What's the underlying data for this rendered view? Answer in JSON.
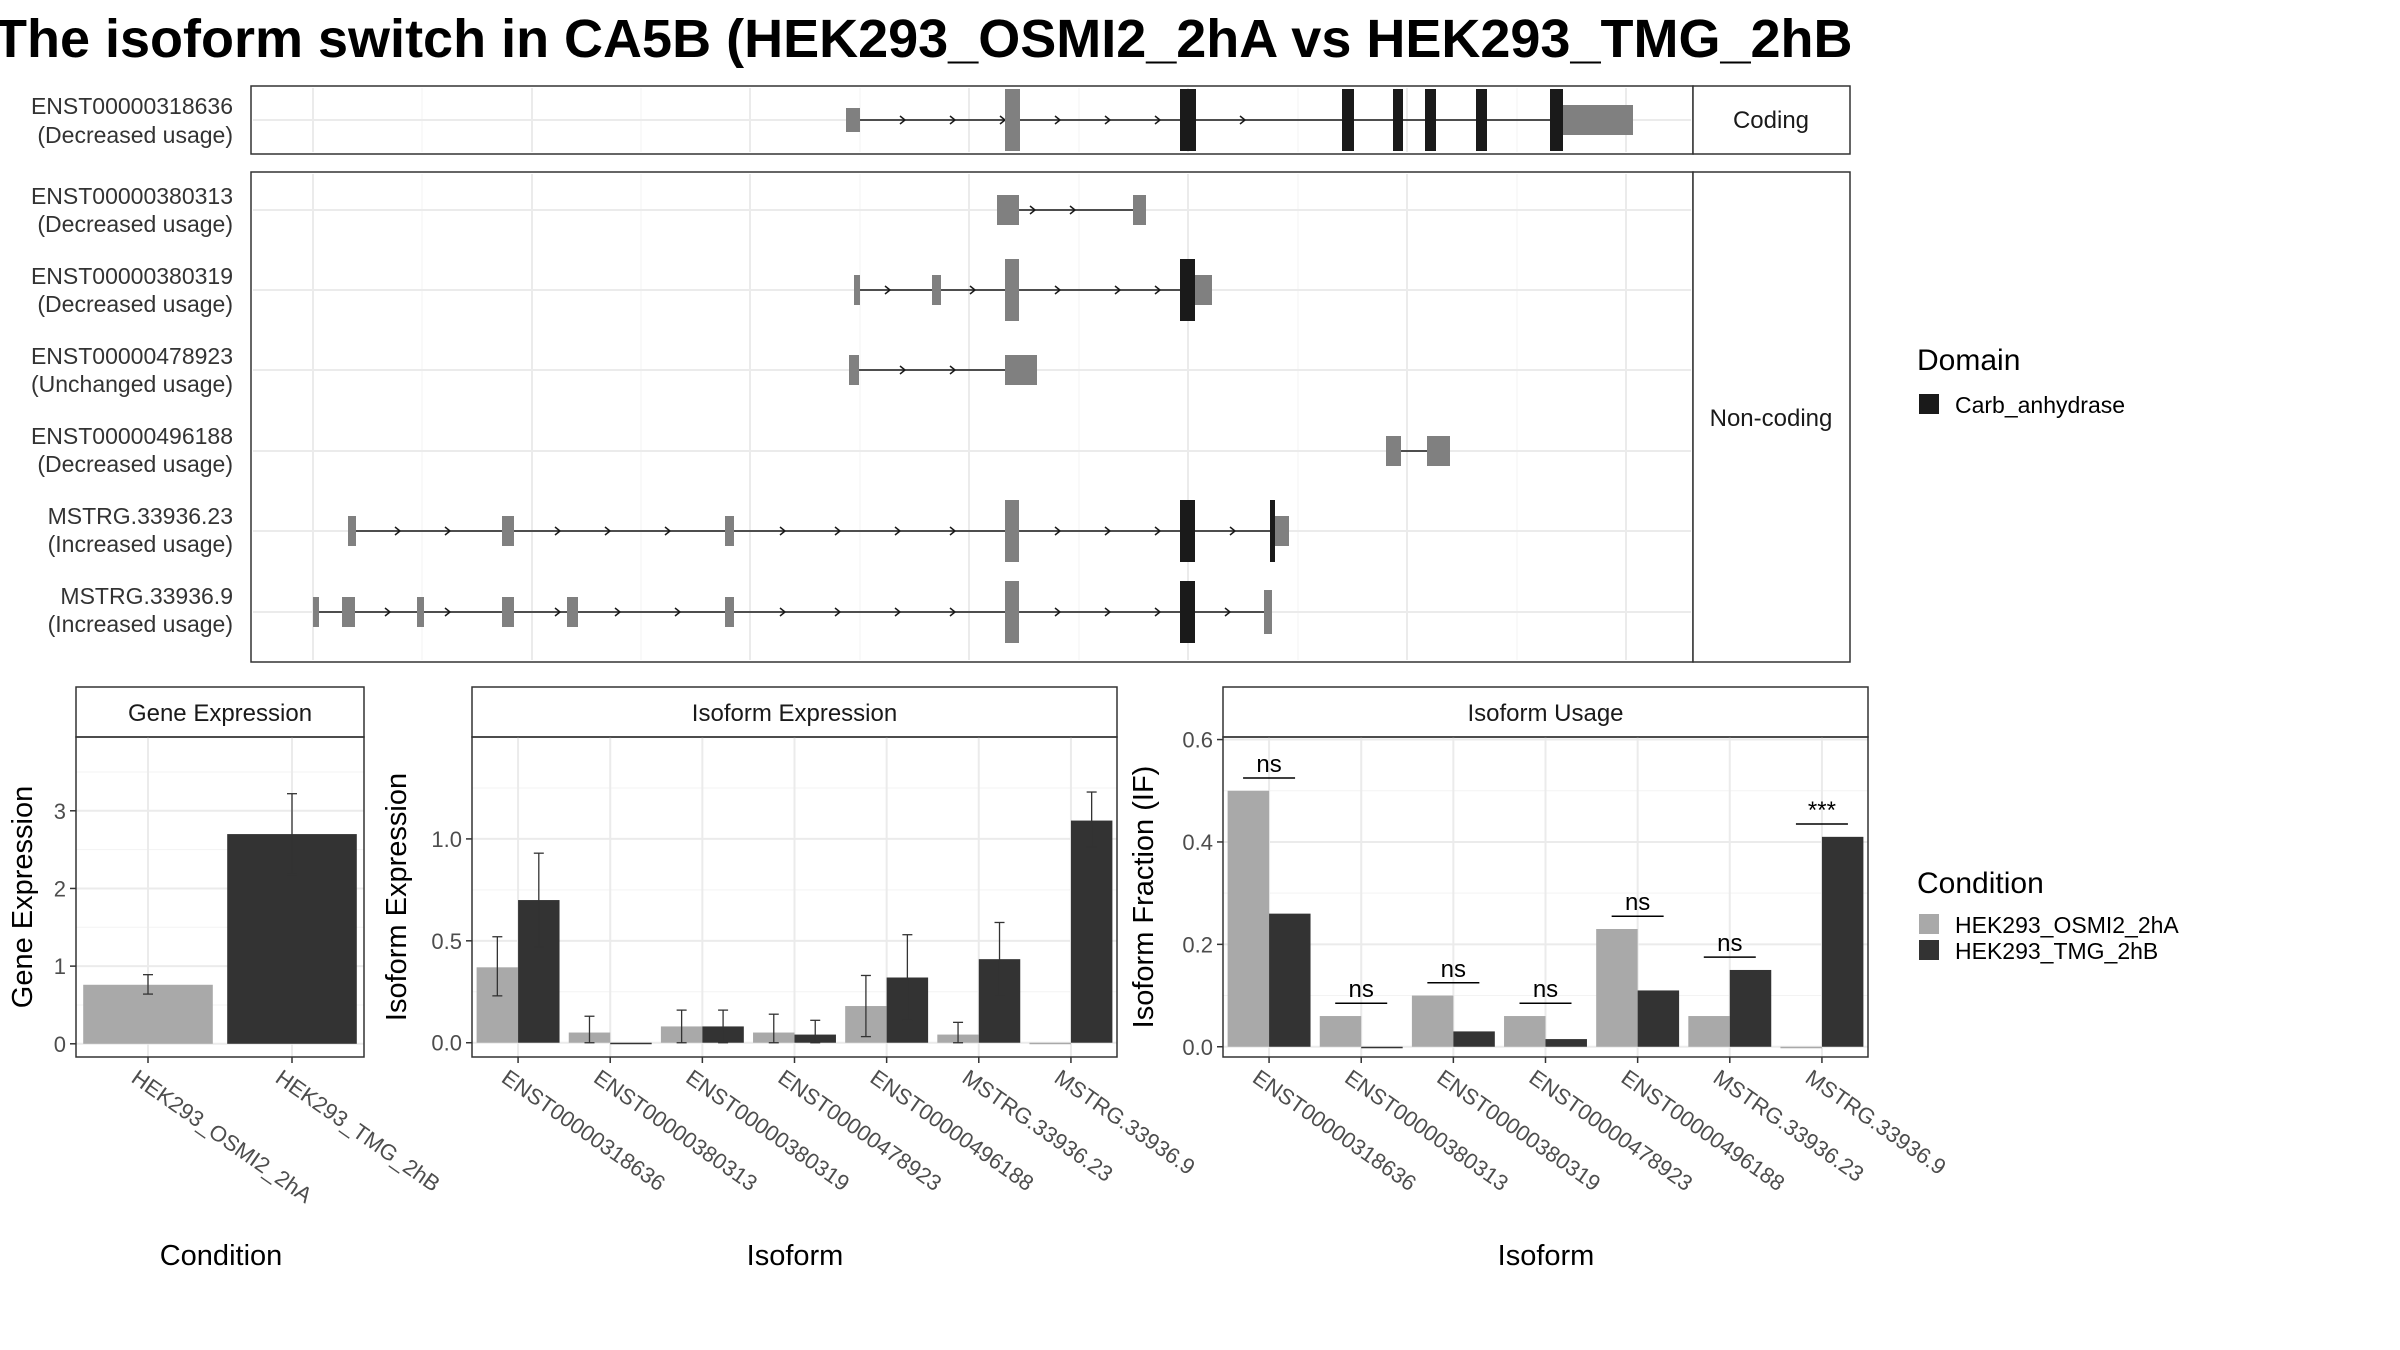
{
  "title": "The isoform switch in CA5B (HEK293_OSMI2_2hA vs HEK293_TMG_2hB",
  "colors": {
    "cond_a": "#a9a9a9",
    "cond_b": "#333333",
    "domain": "#1a1a1a",
    "exon": "#808080",
    "grid": "#ebebeb",
    "panel_border": "#333333"
  },
  "structure": {
    "coding_label": "Coding",
    "noncoding_label": "Non-coding",
    "transcripts": [
      {
        "id": "ENST00000318636",
        "usage": "(Decreased usage)",
        "group": "coding"
      },
      {
        "id": "ENST00000380313",
        "usage": "(Decreased usage)",
        "group": "noncoding"
      },
      {
        "id": "ENST00000380319",
        "usage": "(Decreased usage)",
        "group": "noncoding"
      },
      {
        "id": "ENST00000478923",
        "usage": "(Unchanged usage)",
        "group": "noncoding"
      },
      {
        "id": "ENST00000496188",
        "usage": "(Decreased usage)",
        "group": "noncoding"
      },
      {
        "id": "MSTRG.33936.23",
        "usage": "(Increased usage)",
        "group": "noncoding"
      },
      {
        "id": "MSTRG.33936.9",
        "usage": "(Increased usage)",
        "group": "noncoding"
      }
    ]
  },
  "legend": {
    "domain_title": "Domain",
    "domain_items": [
      "Carb_anhydrase"
    ],
    "condition_title": "Condition",
    "condition_items": [
      "HEK293_OSMI2_2hA",
      "HEK293_TMG_2hB"
    ]
  },
  "chart_data": [
    {
      "type": "bar",
      "panel": "Gene Expression",
      "categories": [
        "HEK293_OSMI2_2hA",
        "HEK293_TMG_2hB"
      ],
      "values": [
        0.76,
        2.7
      ],
      "error": [
        [
          0.64,
          0.89
        ],
        [
          2.18,
          3.22
        ]
      ],
      "xlabel": "Condition",
      "ylabel": "Gene Expression",
      "ylim": [
        -0.17,
        3.95
      ],
      "yticks": [
        0,
        1,
        2,
        3
      ]
    },
    {
      "type": "bar",
      "panel": "Isoform Expression",
      "categories": [
        "ENST00000318636",
        "ENST00000380313",
        "ENST00000380319",
        "ENST00000478923",
        "ENST00000496188",
        "MSTRG.33936.23",
        "MSTRG.33936.9"
      ],
      "series": [
        {
          "name": "HEK293_OSMI2_2hA",
          "values": [
            0.37,
            0.05,
            0.08,
            0.05,
            0.18,
            0.04,
            0.0
          ],
          "error": [
            [
              0.23,
              0.52
            ],
            [
              0.0,
              0.13
            ],
            [
              0.0,
              0.16
            ],
            [
              0.0,
              0.14
            ],
            [
              0.03,
              0.33
            ],
            [
              0.0,
              0.1
            ],
            [
              0.0,
              0.0
            ]
          ]
        },
        {
          "name": "HEK293_TMG_2hB",
          "values": [
            0.7,
            0.0,
            0.08,
            0.04,
            0.32,
            0.41,
            1.09
          ],
          "error": [
            [
              0.47,
              0.93
            ],
            [
              0.0,
              0.0
            ],
            [
              0.0,
              0.16
            ],
            [
              0.0,
              0.11
            ],
            [
              0.11,
              0.53
            ],
            [
              0.23,
              0.59
            ],
            [
              0.96,
              1.23
            ]
          ]
        }
      ],
      "xlabel": "Isoform",
      "ylabel": "Isoform Expression",
      "ylim": [
        -0.07,
        1.5
      ],
      "yticks": [
        0.0,
        0.5,
        1.0
      ]
    },
    {
      "type": "bar",
      "panel": "Isoform Usage",
      "categories": [
        "ENST00000318636",
        "ENST00000380313",
        "ENST00000380319",
        "ENST00000478923",
        "ENST00000496188",
        "MSTRG.33936.23",
        "MSTRG.33936.9"
      ],
      "series": [
        {
          "name": "HEK293_OSMI2_2hA",
          "values": [
            0.5,
            0.06,
            0.1,
            0.06,
            0.23,
            0.06,
            0.0
          ]
        },
        {
          "name": "HEK293_TMG_2hB",
          "values": [
            0.26,
            0.0,
            0.03,
            0.015,
            0.11,
            0.15,
            0.41
          ]
        }
      ],
      "significance": [
        "ns",
        "ns",
        "ns",
        "ns",
        "ns",
        "ns",
        "***"
      ],
      "xlabel": "Isoform",
      "ylabel": "Isoform Fraction (IF)",
      "ylim": [
        -0.02,
        0.605
      ],
      "yticks": [
        0.0,
        0.2,
        0.4,
        0.6
      ]
    }
  ]
}
